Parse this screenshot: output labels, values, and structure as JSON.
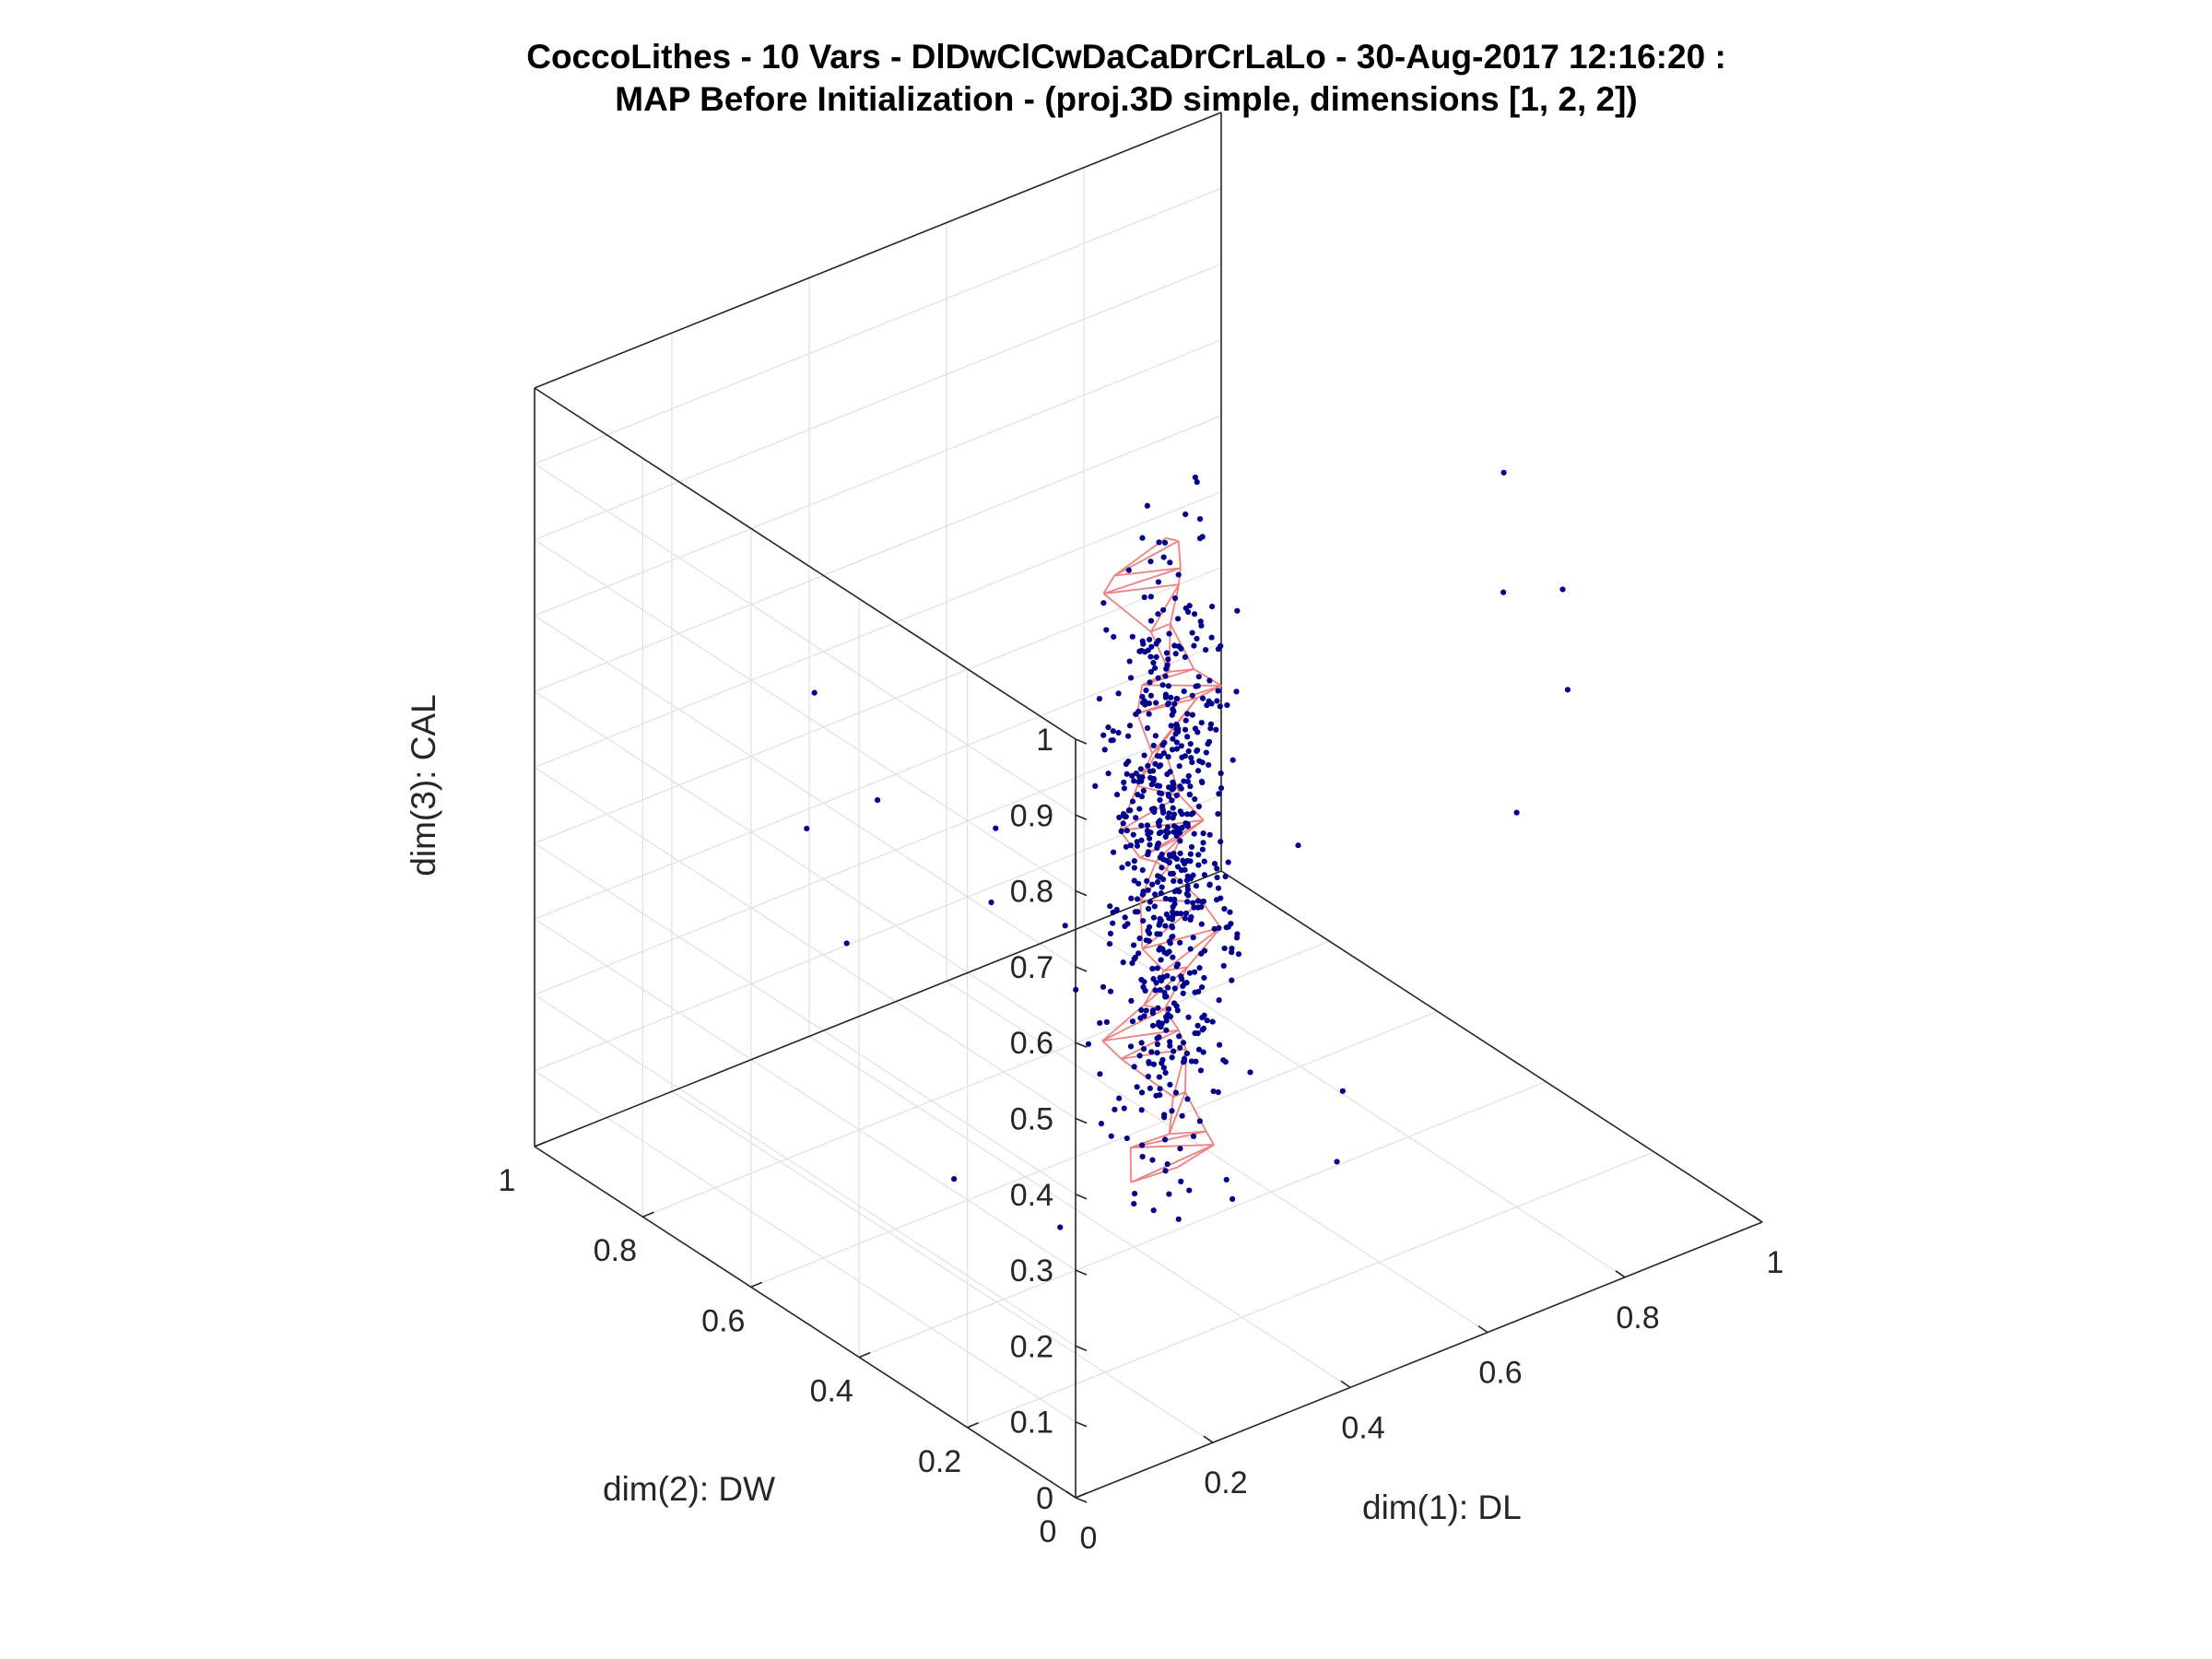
{
  "chart_data": {
    "type": "scatter3d",
    "title": [
      "CoccoLithes - 10 Vars - DlDwClCwDaCaDrCrLaLo - 30-Aug-2017 12:16:20 :",
      "MAP Before Initialization - (proj.3D simple, dimensions [1, 2, 2])"
    ],
    "xlabel": "dim(1): DL",
    "ylabel": "dim(2): DW",
    "zlabel": "dim(3): CAL",
    "xlim": [
      0,
      1
    ],
    "ylim": [
      0,
      1
    ],
    "zlim": [
      0,
      1
    ],
    "x_ticks": [
      "0",
      "0.2",
      "0.4",
      "0.6",
      "0.8",
      "1"
    ],
    "y_ticks": [
      "0",
      "0.2",
      "0.4",
      "0.6",
      "0.8",
      "1"
    ],
    "z_ticks": [
      "0",
      "0.1",
      "0.2",
      "0.3",
      "0.4",
      "0.5",
      "0.6",
      "0.7",
      "0.8",
      "0.9",
      "1"
    ],
    "grid": true,
    "view": "3D isometric, azimuth -37.5, elevation 30",
    "colors": {
      "points": "#00008b",
      "map": "#f08080",
      "axes": "#262626",
      "grid": "#e3e3e3"
    },
    "series": [
      {
        "type": "scatter",
        "marker": "dot",
        "approx_count": 650,
        "points": [
          [
            0.46,
            0.42,
            0.14
          ],
          [
            0.44,
            0.45,
            0.2
          ],
          [
            0.5,
            0.4,
            0.25
          ],
          [
            0.48,
            0.44,
            0.31
          ],
          [
            0.42,
            0.47,
            0.36
          ],
          [
            0.47,
            0.43,
            0.42
          ],
          [
            0.51,
            0.39,
            0.47
          ],
          [
            0.45,
            0.46,
            0.52
          ],
          [
            0.49,
            0.41,
            0.57
          ],
          [
            0.43,
            0.48,
            0.62
          ],
          [
            0.52,
            0.38,
            0.68
          ],
          [
            0.46,
            0.44,
            0.73
          ],
          [
            0.48,
            0.42,
            0.79
          ],
          [
            0.44,
            0.46,
            0.85
          ],
          [
            0.5,
            0.4,
            0.9
          ],
          [
            0.55,
            0.55,
            0.55
          ],
          [
            0.38,
            0.32,
            0.4
          ],
          [
            0.6,
            0.35,
            0.48
          ],
          [
            0.35,
            0.6,
            0.38
          ],
          [
            0.62,
            0.5,
            0.3
          ],
          [
            0.3,
            0.4,
            0.46
          ],
          [
            0.58,
            0.62,
            0.22
          ],
          [
            0.4,
            0.3,
            0.66
          ],
          [
            0.54,
            0.46,
            0.6
          ],
          [
            0.41,
            0.52,
            0.28
          ],
          [
            0.82,
            0.25,
            0.78
          ],
          [
            0.93,
            0.28,
            0.73
          ],
          [
            0.89,
            0.22,
            0.64
          ],
          [
            0.8,
            0.2,
            0.52
          ],
          [
            0.86,
            0.3,
            0.9
          ],
          [
            0.1,
            0.55,
            0.44
          ],
          [
            0.16,
            0.7,
            0.5
          ],
          [
            0.2,
            0.62,
            0.56
          ],
          [
            0.12,
            0.3,
            0.7
          ],
          [
            0.25,
            0.8,
            0.6
          ],
          [
            0.7,
            0.6,
            0.15
          ],
          [
            0.72,
            0.42,
            0.08
          ],
          [
            0.68,
            0.38,
            0.02
          ],
          [
            0.28,
            0.58,
            0.05
          ],
          [
            0.34,
            0.46,
            0.02
          ]
        ]
      },
      {
        "type": "mesh",
        "name": "MAP",
        "grid_shape": [
          1,
          2,
          2
        ]
      }
    ]
  }
}
